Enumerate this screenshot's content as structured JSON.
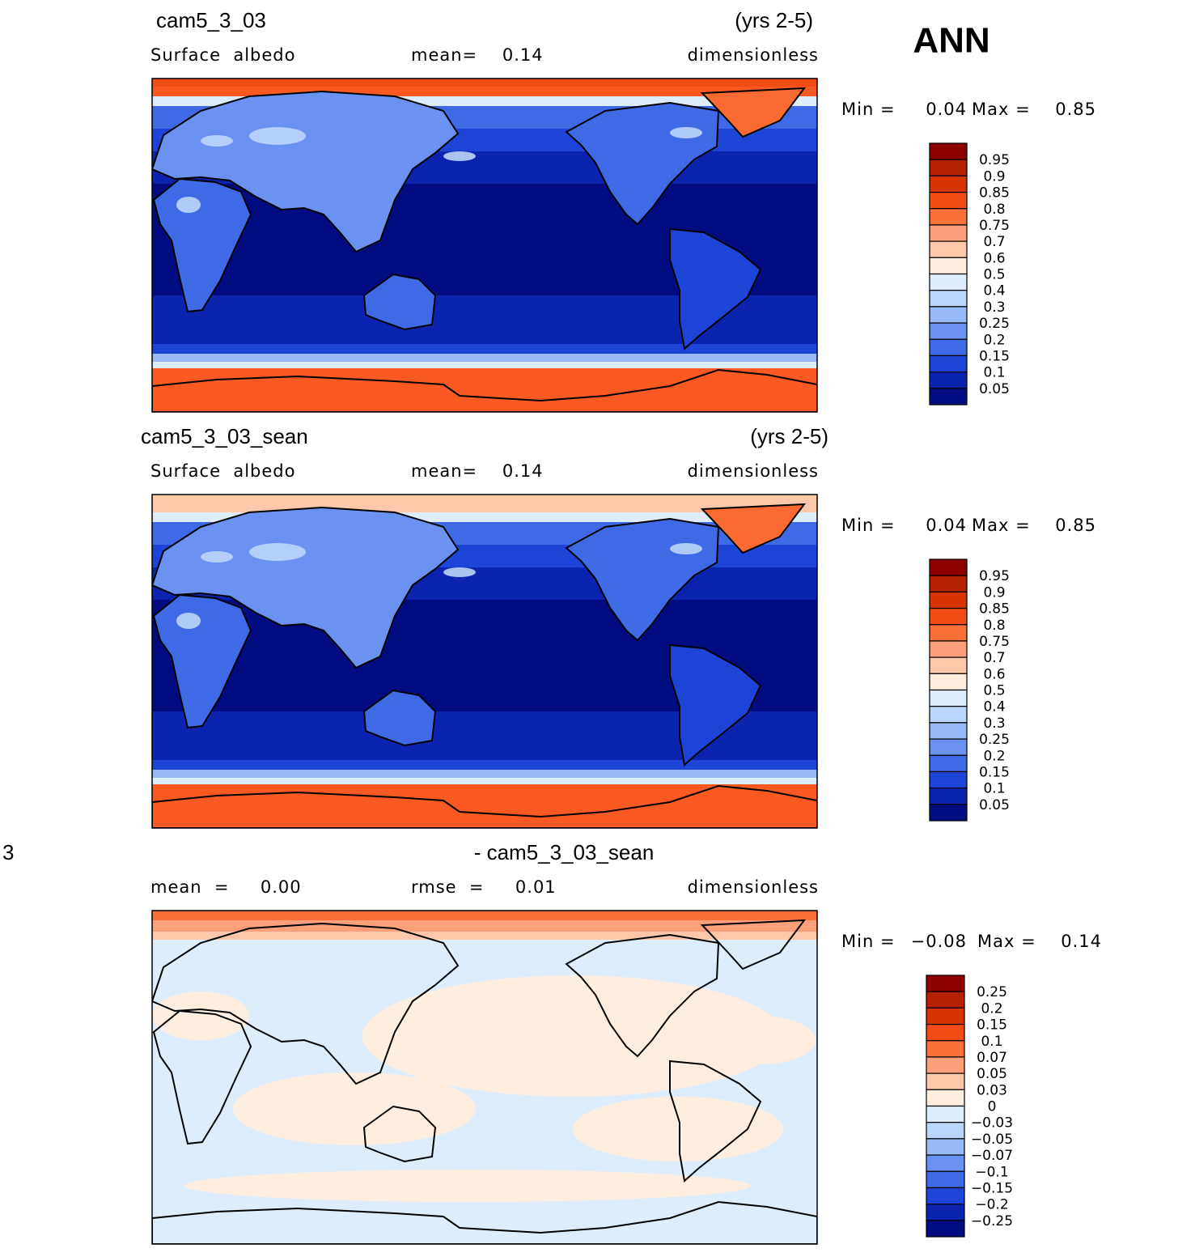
{
  "figure_label": "ANN",
  "panels": [
    {
      "title_left": "cam5_3_03",
      "title_right": "(yrs 2-5)",
      "subtitle_left": "Surface  albedo",
      "subtitle_mid": "mean=    0.14",
      "subtitle_right": "dimensionless",
      "min_label": "Min =",
      "min_value": "0.04",
      "max_label": "Max =",
      "max_value": "0.85",
      "colorbar": {
        "labels": [
          "0.95",
          "0.9",
          "0.85",
          "0.8",
          "0.75",
          "0.7",
          "0.6",
          "0.5",
          "0.4",
          "0.3",
          "0.25",
          "0.2",
          "0.15",
          "0.1",
          "0.05"
        ],
        "colors": [
          "#8c0000",
          "#b42000",
          "#d83400",
          "#f04c14",
          "#fa7038",
          "#fca07c",
          "#fdc8aa",
          "#ffeee0",
          "#deedfc",
          "#bcd6fa",
          "#98baf6",
          "#6a92f0",
          "#3e6ae6",
          "#1c44d6",
          "#0a24b0",
          "#000c80"
        ]
      }
    },
    {
      "title_left": "cam5_3_03_sean",
      "title_right": "(yrs 2-5)",
      "subtitle_left": "Surface  albedo",
      "subtitle_mid": "mean=    0.14",
      "subtitle_right": "dimensionless",
      "min_label": "Min =",
      "min_value": "0.04",
      "max_label": "Max =",
      "max_value": "0.85",
      "colorbar": {
        "labels": [
          "0.95",
          "0.9",
          "0.85",
          "0.8",
          "0.75",
          "0.7",
          "0.6",
          "0.5",
          "0.4",
          "0.3",
          "0.25",
          "0.2",
          "0.15",
          "0.1",
          "0.05"
        ],
        "colors": [
          "#8c0000",
          "#b42000",
          "#d83400",
          "#f04c14",
          "#fa7038",
          "#fca07c",
          "#fdc8aa",
          "#ffeee0",
          "#deedfc",
          "#bcd6fa",
          "#98baf6",
          "#6a92f0",
          "#3e6ae6",
          "#1c44d6",
          "#0a24b0",
          "#000c80"
        ]
      }
    },
    {
      "title_left": "3",
      "title_center": "- cam5_3_03_sean",
      "subtitle_left": "mean  =     0.00",
      "subtitle_mid": "rmse  =     0.01",
      "subtitle_right": "dimensionless",
      "min_label": "Min =",
      "min_value": "−0.08",
      "max_label": "Max =",
      "max_value": "0.14",
      "colorbar": {
        "labels": [
          "0.25",
          "0.2",
          "0.15",
          "0.1",
          "0.07",
          "0.05",
          "0.03",
          "0",
          "−0.03",
          "−0.05",
          "−0.07",
          "−0.1",
          "−0.15",
          "−0.2",
          "−0.25"
        ],
        "colors": [
          "#8c0000",
          "#b42000",
          "#d83400",
          "#f04c14",
          "#fa7038",
          "#fca07c",
          "#fdc8aa",
          "#ffeee0",
          "#deedfc",
          "#bcd6fa",
          "#98baf6",
          "#6a92f0",
          "#3e6ae6",
          "#1c44d6",
          "#0a24b0",
          "#000c80"
        ]
      }
    }
  ]
}
